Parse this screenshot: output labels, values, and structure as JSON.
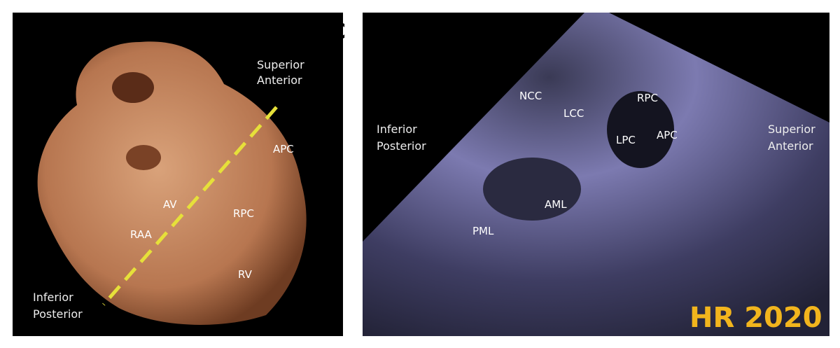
{
  "panel_left": {
    "orientation_top": [
      "Superior",
      "Anterior"
    ],
    "orientation_bottom": [
      "Inferior",
      "Posterior"
    ],
    "labels": [
      "APC",
      "RPC",
      "AV",
      "RAA",
      "RV"
    ]
  },
  "panel_right": {
    "panel_letter": "C",
    "orientation_left": [
      "Inferior",
      "Posterior"
    ],
    "orientation_right": [
      "Superior",
      "Anterior"
    ],
    "labels": [
      "NCC",
      "LCC",
      "RPC",
      "LPC",
      "APC",
      "AML",
      "PML"
    ],
    "watermark": "HR 2020"
  }
}
